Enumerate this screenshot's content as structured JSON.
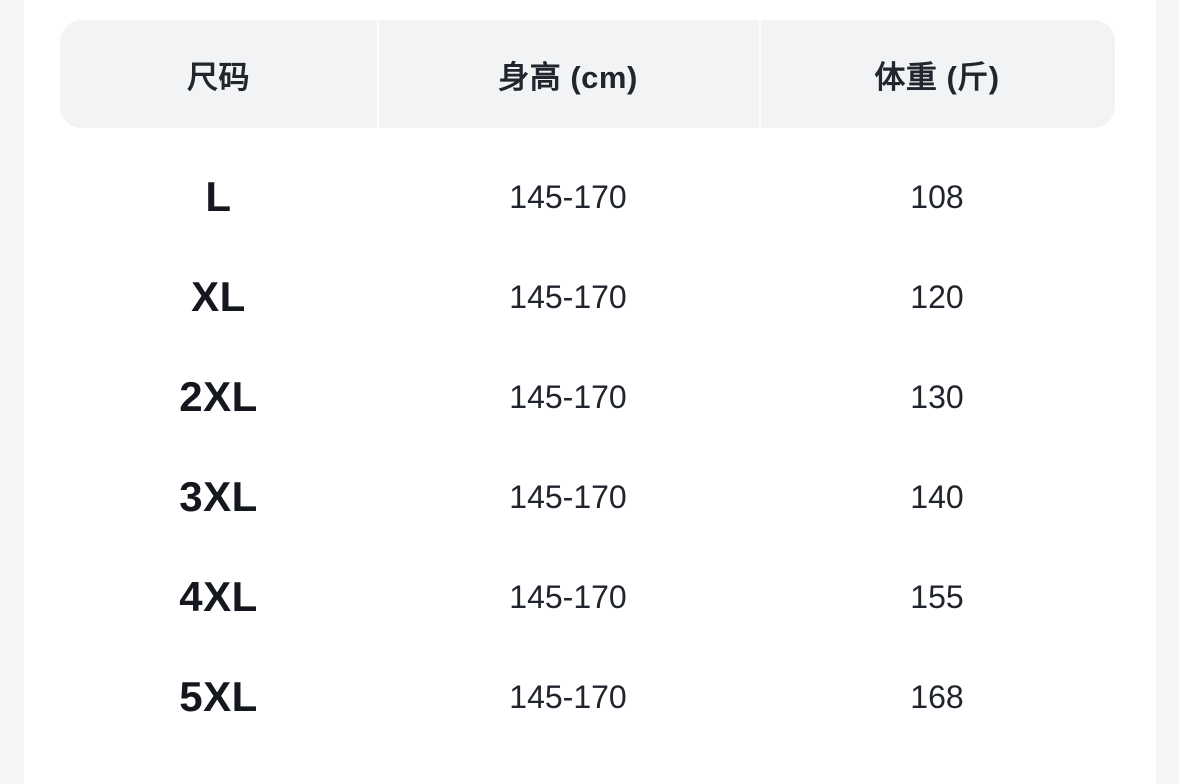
{
  "page": {
    "background_color": "#ffffff",
    "edge_strip_color": "#f4f5f7"
  },
  "size_chart": {
    "header": {
      "background_color": "#f2f3f5",
      "text_color": "#22252d",
      "columns": [
        "尺码",
        "身高 (cm)",
        "体重 (斤)"
      ]
    },
    "body_text_color": "#20242c",
    "size_label_color": "#14171e",
    "rows": [
      {
        "size": "L",
        "height": "145-170",
        "weight": "108"
      },
      {
        "size": "XL",
        "height": "145-170",
        "weight": "120"
      },
      {
        "size": "2XL",
        "height": "145-170",
        "weight": "130"
      },
      {
        "size": "3XL",
        "height": "145-170",
        "weight": "140"
      },
      {
        "size": "4XL",
        "height": "145-170",
        "weight": "155"
      },
      {
        "size": "5XL",
        "height": "145-170",
        "weight": "168"
      }
    ]
  }
}
